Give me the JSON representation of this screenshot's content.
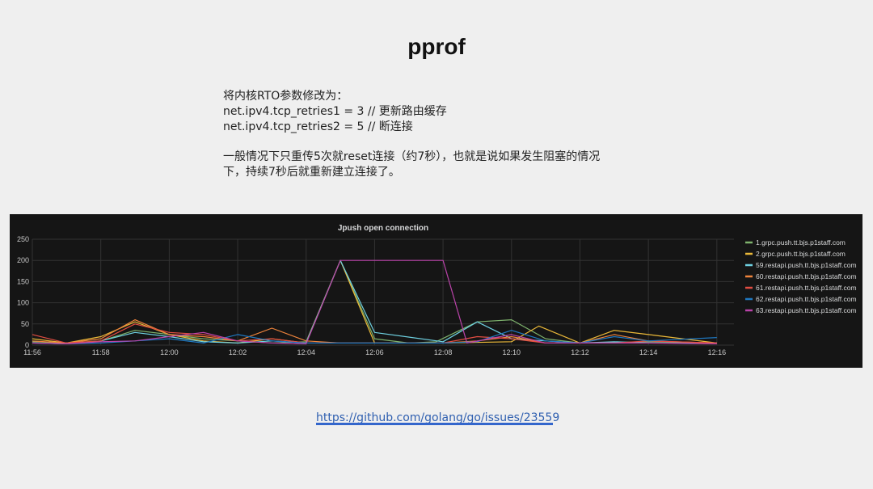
{
  "slide": {
    "title": "pprof",
    "lines": [
      "将内核RTO参数修改为：",
      "net.ipv4.tcp_retries1 = 3  // 更新路由缓存",
      "net.ipv4.tcp_retries2 = 5  // 断连接"
    ],
    "paragraph": [
      "一般情况下只重传5次就reset连接（约7秒），也就是说如果发生阻塞的情况",
      "下，持续7秒后就重新建立连接了。"
    ],
    "link_text": "https://github.com/golang/go/issues/23559",
    "link_color": "#2f5fb0"
  },
  "chart_data": {
    "type": "line",
    "title": "Jpush open connection",
    "ylim": [
      0,
      250
    ],
    "y_ticks": [
      0,
      50,
      100,
      150,
      200,
      250
    ],
    "x_ticks": [
      "11:56",
      "11:58",
      "12:00",
      "12:02",
      "12:04",
      "12:06",
      "12:08",
      "12:10",
      "12:12",
      "12:14",
      "12:16"
    ],
    "x_range_minutes": [
      0,
      20.5
    ],
    "grid": true,
    "legend_position": "right",
    "background": "#151515",
    "series": [
      {
        "name": "1.grpc.push.tt.bjs.p1staff.com",
        "color": "#7eb26d",
        "x": [
          0,
          1,
          2,
          3,
          4,
          5,
          6,
          7,
          8,
          9,
          10,
          11,
          11.8,
          13,
          14,
          15,
          16,
          18,
          20
        ],
        "values": [
          8,
          5,
          10,
          35,
          25,
          15,
          10,
          5,
          8,
          200,
          15,
          5,
          8,
          55,
          60,
          15,
          5,
          8,
          5
        ]
      },
      {
        "name": "2.grpc.push.tt.bjs.p1staff.com",
        "color": "#eab839",
        "x": [
          0,
          1,
          2,
          3,
          4,
          5,
          6,
          7,
          8,
          9,
          10,
          11,
          12,
          14,
          14.8,
          16,
          17,
          18,
          20
        ],
        "values": [
          15,
          5,
          20,
          55,
          25,
          10,
          5,
          15,
          5,
          200,
          5,
          5,
          5,
          8,
          45,
          5,
          35,
          25,
          5
        ]
      },
      {
        "name": "59.restapi.push.tt.bjs.p1staff.com",
        "color": "#6ed0e0",
        "x": [
          0,
          1,
          2,
          3,
          4,
          5,
          6,
          7,
          8,
          9,
          10,
          12,
          13,
          14,
          15,
          16,
          17,
          18,
          20
        ],
        "values": [
          5,
          3,
          10,
          30,
          20,
          8,
          5,
          10,
          5,
          200,
          30,
          8,
          55,
          15,
          10,
          5,
          8,
          5,
          5
        ]
      },
      {
        "name": "60.restapi.push.tt.bjs.p1staff.com",
        "color": "#ef843c",
        "x": [
          0,
          1,
          2,
          3,
          4,
          5,
          6,
          7,
          8,
          9,
          10,
          12,
          13,
          14,
          15,
          16,
          17,
          18,
          20
        ],
        "values": [
          10,
          5,
          15,
          60,
          25,
          20,
          10,
          40,
          10,
          5,
          5,
          5,
          10,
          20,
          5,
          5,
          25,
          10,
          5
        ]
      },
      {
        "name": "61.restapi.push.tt.bjs.p1staff.com",
        "color": "#e24d42",
        "x": [
          0,
          1,
          2,
          3,
          4,
          5,
          6,
          7,
          8,
          9,
          10,
          12,
          13,
          14,
          15,
          16,
          17,
          18,
          20
        ],
        "values": [
          25,
          5,
          10,
          50,
          30,
          25,
          10,
          15,
          5,
          5,
          5,
          5,
          20,
          15,
          5,
          5,
          5,
          10,
          5
        ]
      },
      {
        "name": "62.restapi.push.tt.bjs.p1staff.com",
        "color": "#1f78c1",
        "x": [
          0,
          1,
          2,
          3,
          4,
          5,
          6,
          7,
          8,
          9,
          10,
          12,
          13,
          14,
          15,
          16,
          17,
          18,
          20
        ],
        "values": [
          5,
          3,
          5,
          10,
          15,
          5,
          25,
          10,
          5,
          5,
          5,
          5,
          8,
          35,
          10,
          5,
          20,
          10,
          18
        ]
      },
      {
        "name": "63.restapi.push.tt.bjs.p1staff.com",
        "color": "#ba43a9",
        "x": [
          0,
          1,
          2,
          3,
          4,
          5,
          6,
          7,
          8,
          9,
          10,
          11,
          12,
          12.7,
          14,
          15,
          16,
          18,
          20
        ],
        "values": [
          5,
          3,
          8,
          10,
          20,
          30,
          10,
          5,
          3,
          200,
          200,
          200,
          200,
          5,
          25,
          5,
          5,
          5,
          3
        ]
      }
    ]
  }
}
